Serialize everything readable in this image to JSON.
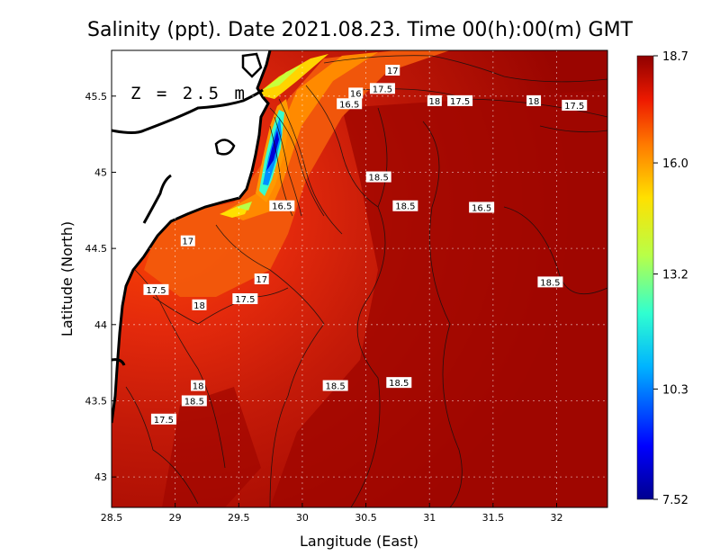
{
  "chart_data": {
    "type": "heatmap",
    "title": "Salinity (ppt). Date 2021.08.23. Time 00(h):00(m) GMT",
    "xlabel": "Langitude (East)",
    "ylabel": "Latitude (North)",
    "depth_label": "Z = 2.5 m",
    "xlim": [
      28.5,
      32.4
    ],
    "ylim": [
      42.8,
      45.8
    ],
    "xticks": [
      {
        "value": 28.5,
        "label": "28.5"
      },
      {
        "value": 29,
        "label": "29"
      },
      {
        "value": 29.5,
        "label": "29.5"
      },
      {
        "value": 30,
        "label": "30"
      },
      {
        "value": 30.5,
        "label": "30.5"
      },
      {
        "value": 31,
        "label": "31"
      },
      {
        "value": 31.5,
        "label": "31.5"
      },
      {
        "value": 32,
        "label": "32"
      }
    ],
    "yticks": [
      {
        "value": 43,
        "label": "43"
      },
      {
        "value": 43.5,
        "label": "43.5"
      },
      {
        "value": 44,
        "label": "44"
      },
      {
        "value": 44.5,
        "label": "44.5"
      },
      {
        "value": 45,
        "label": "45"
      },
      {
        "value": 45.5,
        "label": "45.5"
      }
    ],
    "grid": true,
    "colorbar": {
      "min": 7.52,
      "max": 18.7,
      "labels": [
        {
          "value": 18.7,
          "label": "18.7"
        },
        {
          "value": 16.0,
          "label": "16.0"
        },
        {
          "value": 13.2,
          "label": "13.2"
        },
        {
          "value": 10.3,
          "label": "10.3"
        },
        {
          "value": 7.52,
          "label": "7.52"
        }
      ]
    },
    "contour_labels": [
      {
        "text": "17",
        "lon": 30.71,
        "lat": 45.67
      },
      {
        "text": "17.5",
        "lon": 30.63,
        "lat": 45.55
      },
      {
        "text": "16",
        "lon": 30.42,
        "lat": 45.52
      },
      {
        "text": "16.5",
        "lon": 30.37,
        "lat": 45.45
      },
      {
        "text": "18",
        "lon": 31.04,
        "lat": 45.47
      },
      {
        "text": "17.5",
        "lon": 31.24,
        "lat": 45.47
      },
      {
        "text": "18",
        "lon": 31.82,
        "lat": 45.47
      },
      {
        "text": "17.5",
        "lon": 32.14,
        "lat": 45.44
      },
      {
        "text": "18.5",
        "lon": 30.6,
        "lat": 44.97
      },
      {
        "text": "18.5",
        "lon": 30.81,
        "lat": 44.78
      },
      {
        "text": "16.5",
        "lon": 29.84,
        "lat": 44.78
      },
      {
        "text": "16.5",
        "lon": 31.41,
        "lat": 44.77
      },
      {
        "text": "17",
        "lon": 29.1,
        "lat": 44.55
      },
      {
        "text": "17",
        "lon": 29.68,
        "lat": 44.3
      },
      {
        "text": "17.5",
        "lon": 28.85,
        "lat": 44.23
      },
      {
        "text": "17.5",
        "lon": 29.55,
        "lat": 44.17
      },
      {
        "text": "18",
        "lon": 29.19,
        "lat": 44.13
      },
      {
        "text": "18.5",
        "lon": 31.95,
        "lat": 44.28
      },
      {
        "text": "18.5",
        "lon": 30.26,
        "lat": 43.6
      },
      {
        "text": "18.5",
        "lon": 30.76,
        "lat": 43.62
      },
      {
        "text": "18",
        "lon": 29.18,
        "lat": 43.6
      },
      {
        "text": "18.5",
        "lon": 29.15,
        "lat": 43.5
      },
      {
        "text": "17.5",
        "lon": 28.91,
        "lat": 43.38
      }
    ]
  }
}
